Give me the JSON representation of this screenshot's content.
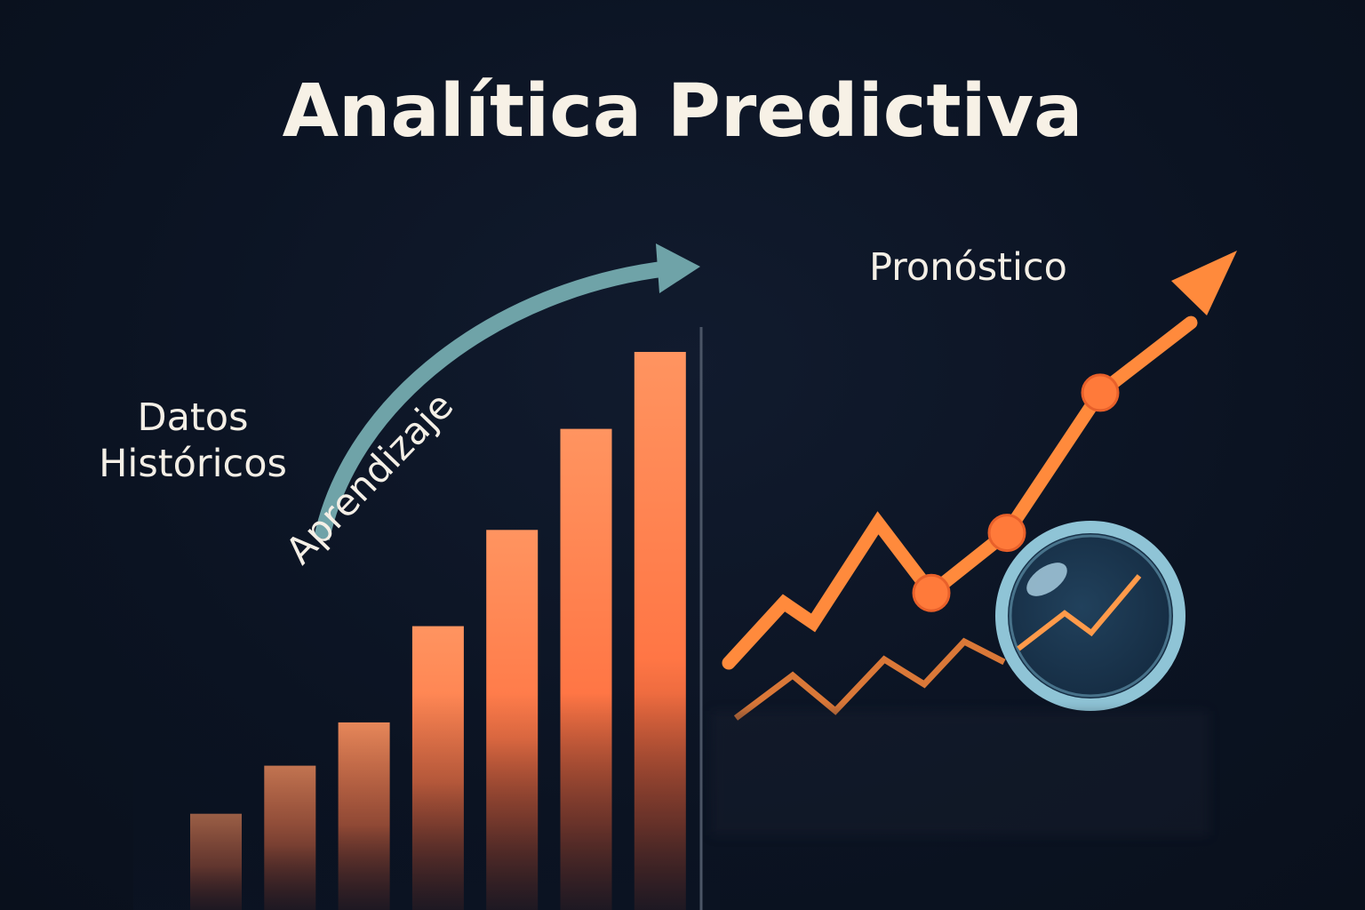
{
  "title": "Analítica Predictiva",
  "labels": {
    "historical": "Datos Históricos",
    "learning": "Aprendizaje",
    "forecast": "Pronóstico"
  },
  "colors": {
    "background": "#0c1424",
    "bar": "#ff7a45",
    "forecast_line": "#ff8a3c",
    "learning_arrow": "#6fa3a8",
    "lens_ring": "#8fc4d6",
    "divider": "#4b5566"
  },
  "icons": {
    "learning_arrow": "curved-arrow-icon",
    "forecast_arrow": "trend-up-arrow-icon",
    "lens": "magnifying-glass-icon"
  },
  "chart_data": [
    {
      "type": "bar",
      "series": [
        {
          "values": [
            1.0,
            1.5,
            1.95,
            2.95,
            3.95,
            5.0,
            5.8
          ]
        }
      ]
    },
    {
      "type": "line",
      "series": [
        {
          "values": [
            1.2,
            1.8,
            1.6,
            2.6,
            1.9,
            2.5,
            3.9,
            4.6
          ]
        }
      ]
    }
  ]
}
